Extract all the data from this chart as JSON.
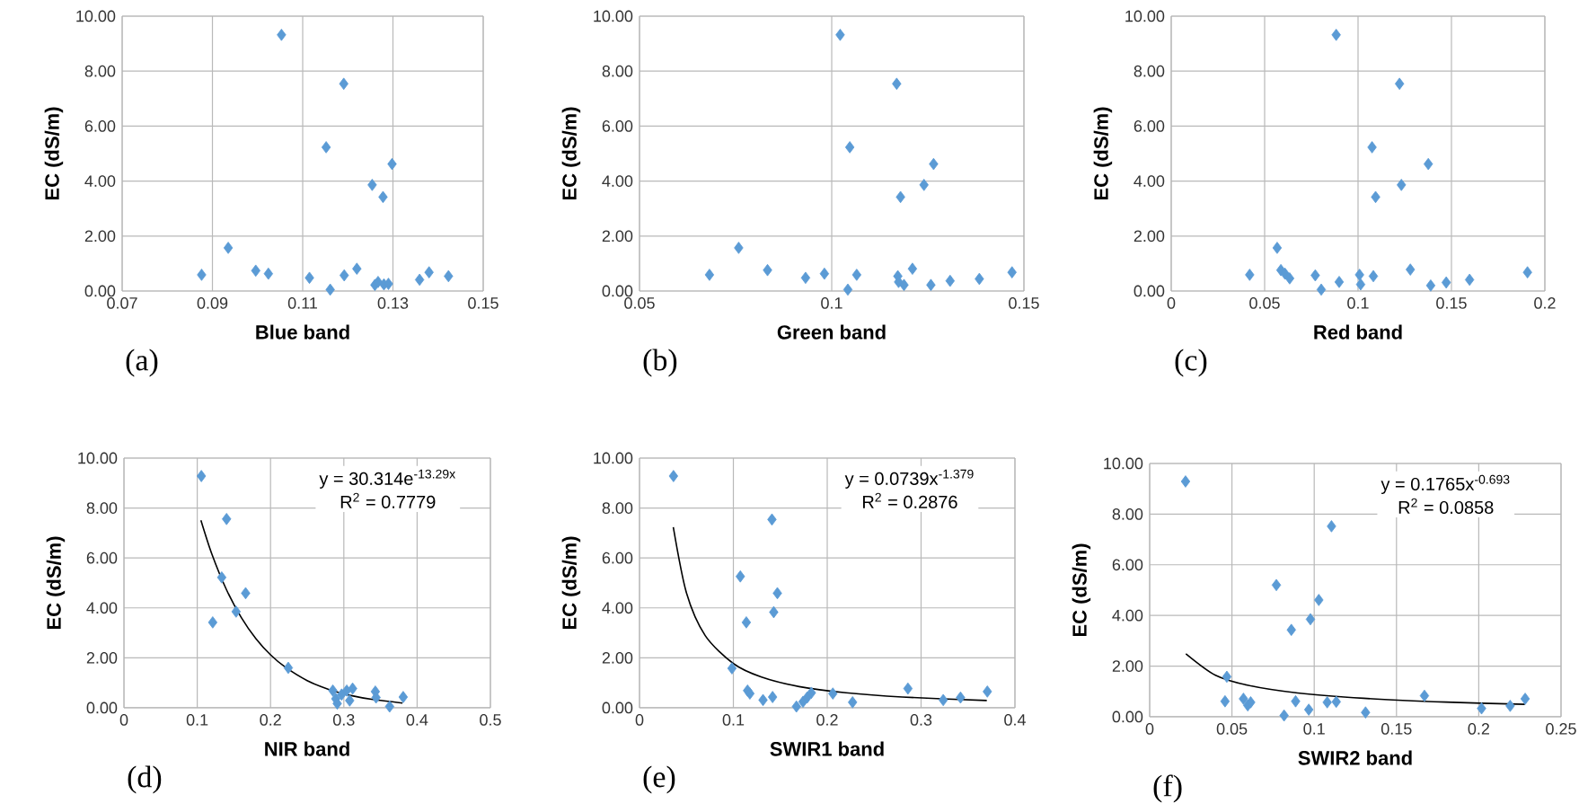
{
  "chart_data": [
    {
      "type": "scatter",
      "xlabel": "Blue band",
      "ylabel": "EC (dS/m)",
      "xlim": [
        0.07,
        0.15
      ],
      "xticks": [
        0.07,
        0.09,
        0.11,
        0.13,
        0.15
      ],
      "ylim": [
        0,
        10
      ],
      "yticks": [
        {
          "value": 0,
          "label": "0.00"
        },
        {
          "value": 2,
          "label": "2.00"
        },
        {
          "value": 4,
          "label": "4.00"
        },
        {
          "value": 6,
          "label": "6.00"
        },
        {
          "value": 8,
          "label": "8.00"
        },
        {
          "value": 10,
          "label": "10.00"
        }
      ],
      "grid": true,
      "marker": "diamond",
      "annotations": [
        "(a)"
      ],
      "series": [
        {
          "color": "#5b9bd5",
          "x": [
            0.0876,
            0.0935,
            0.0996,
            0.1024,
            0.1053,
            0.1115,
            0.1152,
            0.1161,
            0.1191,
            0.1192,
            0.122,
            0.1254,
            0.126,
            0.1267,
            0.1278,
            0.128,
            0.129,
            0.1298,
            0.1359,
            0.138,
            0.1423
          ],
          "values": [
            0.59,
            1.57,
            0.74,
            0.63,
            9.32,
            0.48,
            5.23,
            0.05,
            7.54,
            0.57,
            0.81,
            3.86,
            0.22,
            0.33,
            3.42,
            0.24,
            0.26,
            4.62,
            0.41,
            0.68,
            0.54
          ]
        }
      ]
    },
    {
      "type": "scatter",
      "xlabel": "Green band",
      "ylabel": "EC (dS/m)",
      "xlim": [
        0.05,
        0.15
      ],
      "xticks": [
        0.05,
        0.1,
        0.15
      ],
      "ylim": [
        0,
        10
      ],
      "yticks": [
        {
          "value": 0,
          "label": "0.00"
        },
        {
          "value": 2,
          "label": "2.00"
        },
        {
          "value": 4,
          "label": "4.00"
        },
        {
          "value": 6,
          "label": "6.00"
        },
        {
          "value": 8,
          "label": "8.00"
        },
        {
          "value": 10,
          "label": "10.00"
        }
      ],
      "grid": true,
      "marker": "diamond",
      "annotations": [
        "(b)"
      ],
      "series": [
        {
          "color": "#5b9bd5",
          "x": [
            0.0682,
            0.0758,
            0.0833,
            0.0932,
            0.0981,
            0.1022,
            0.1042,
            0.1047,
            0.1065,
            0.1169,
            0.1172,
            0.1174,
            0.1179,
            0.1184,
            0.1188,
            0.121,
            0.124,
            0.1258,
            0.1265,
            0.1308,
            0.1384,
            0.1469
          ],
          "values": [
            0.59,
            1.57,
            0.76,
            0.48,
            0.63,
            9.32,
            0.05,
            5.23,
            0.59,
            7.54,
            0.54,
            0.33,
            3.42,
            null,
            0.22,
            0.81,
            3.86,
            0.22,
            4.62,
            0.37,
            0.44,
            0.68
          ]
        }
      ]
    },
    {
      "type": "scatter",
      "xlabel": "Red band",
      "ylabel": "EC (dS/m)",
      "xlim": [
        0,
        0.2
      ],
      "xticks": [
        0,
        0.05,
        0.1,
        0.15,
        0.2
      ],
      "ylim": [
        0,
        10
      ],
      "yticks": [
        {
          "value": 0,
          "label": "0.00"
        },
        {
          "value": 2,
          "label": "2.00"
        },
        {
          "value": 4,
          "label": "4.00"
        },
        {
          "value": 6,
          "label": "6.00"
        },
        {
          "value": 8,
          "label": "8.00"
        },
        {
          "value": 10,
          "label": "10.00"
        }
      ],
      "grid": true,
      "marker": "diamond",
      "annotations": [
        "(c)"
      ],
      "series": [
        {
          "color": "#5b9bd5",
          "x": [
            0.042,
            0.0567,
            0.0587,
            0.0609,
            0.0634,
            0.0771,
            0.0803,
            0.0883,
            0.0899,
            0.1008,
            0.1014,
            0.1075,
            0.1082,
            0.1094,
            0.1222,
            0.1232,
            0.128,
            0.1376,
            0.1389,
            0.1472,
            0.1597,
            0.1907
          ],
          "values": [
            0.59,
            1.57,
            0.76,
            0.63,
            0.46,
            0.57,
            0.05,
            9.32,
            0.33,
            0.59,
            0.24,
            5.23,
            0.54,
            3.42,
            7.54,
            3.86,
            0.78,
            4.62,
            0.2,
            0.31,
            0.41,
            0.68
          ]
        }
      ]
    },
    {
      "type": "scatter",
      "xlabel": "NIR band",
      "ylabel": "EC (dS/m)",
      "xlim": [
        0,
        0.5
      ],
      "xticks": [
        0,
        0.1,
        0.2,
        0.3,
        0.4,
        0.5
      ],
      "ylim": [
        0,
        10
      ],
      "yticks": [
        {
          "value": 0,
          "label": "0.00"
        },
        {
          "value": 2,
          "label": "2.00"
        },
        {
          "value": 4,
          "label": "4.00"
        },
        {
          "value": 6,
          "label": "6.00"
        },
        {
          "value": 8,
          "label": "8.00"
        },
        {
          "value": 10,
          "label": "10.00"
        }
      ],
      "grid": true,
      "marker": "diamond",
      "annotations": [
        "(d)",
        "y = 30.314e$^{-13.29x}$",
        "R$^{2}$ = 0.7779"
      ],
      "series": [
        {
          "color": "#5b9bd5",
          "x": [
            0.1056,
            0.14,
            0.1334,
            0.166,
            0.1211,
            0.153,
            0.2242,
            0.285,
            0.289,
            0.297,
            0.304,
            0.312,
            0.308,
            0.343,
            0.344,
            0.3625,
            0.381,
            0.291
          ],
          "values": [
            9.28,
            7.56,
            5.22,
            4.59,
            3.42,
            3.85,
            1.6,
            0.69,
            0.36,
            0.53,
            0.69,
            0.77,
            0.29,
            0.65,
            0.41,
            0.05,
            0.43,
            0.17
          ]
        },
        {
          "type": "line",
          "marker": "none",
          "color": "#000000",
          "x": [
            0.105,
            0.12,
            0.14,
            0.16,
            0.18,
            0.2,
            0.22,
            0.25,
            0.28,
            0.31,
            0.34,
            0.38
          ],
          "values": [
            7.51,
            6.15,
            4.72,
            3.62,
            2.77,
            2.12,
            1.63,
            1.09,
            0.73,
            0.49,
            0.33,
            0.19
          ]
        }
      ]
    },
    {
      "type": "scatter",
      "xlabel": "SWIR1 band",
      "ylabel": "EC (dS/m)",
      "xlim": [
        0,
        0.4
      ],
      "xticks": [
        0,
        0.1,
        0.2,
        0.3,
        0.4
      ],
      "ylim": [
        0,
        10
      ],
      "yticks": [
        {
          "value": 0,
          "label": "0.00"
        },
        {
          "value": 2,
          "label": "2.00"
        },
        {
          "value": 4,
          "label": "4.00"
        },
        {
          "value": 6,
          "label": "6.00"
        },
        {
          "value": 8,
          "label": "8.00"
        },
        {
          "value": 10,
          "label": "10.00"
        }
      ],
      "grid": true,
      "marker": "diamond",
      "annotations": [
        "(e)",
        "y = 0.0739x$^{-1.379}$",
        "R$^{2}$ = 0.2876"
      ],
      "series": [
        {
          "color": "#5b9bd5",
          "x": [
            0.0362,
            0.1411,
            0.1074,
            0.1469,
            0.143,
            0.1138,
            0.0985,
            0.1151,
            0.1176,
            0.1316,
            0.1418,
            0.1672,
            0.1742,
            0.1786,
            0.1831,
            0.206,
            0.227,
            0.286,
            0.3236,
            0.342,
            0.3706
          ],
          "values": [
            9.28,
            7.54,
            5.26,
            4.59,
            3.83,
            3.42,
            1.58,
            0.69,
            0.57,
            0.31,
            0.43,
            0.05,
            0.24,
            0.41,
            0.6,
            0.57,
            0.22,
            0.77,
            0.31,
            0.41,
            0.65
          ]
        },
        {
          "type": "line",
          "marker": "none",
          "color": "#000000",
          "x": [
            0.036,
            0.05,
            0.07,
            0.1,
            0.13,
            0.17,
            0.22,
            0.28,
            0.37
          ],
          "values": [
            7.23,
            4.6,
            2.89,
            1.77,
            1.23,
            0.85,
            0.6,
            0.43,
            0.29
          ]
        }
      ]
    },
    {
      "type": "scatter",
      "xlabel": "SWIR2 band",
      "ylabel": "EC (dS/m)",
      "xlim": [
        0,
        0.25
      ],
      "xticks": [
        0,
        0.05,
        0.1,
        0.15,
        0.2,
        0.25
      ],
      "ylim": [
        0,
        10
      ],
      "yticks": [
        {
          "value": 0,
          "label": "0.00"
        },
        {
          "value": 2,
          "label": "2.00"
        },
        {
          "value": 4,
          "label": "4.00"
        },
        {
          "value": 6,
          "label": "6.00"
        },
        {
          "value": 8,
          "label": "8.00"
        },
        {
          "value": 10,
          "label": "10.00"
        }
      ],
      "grid": true,
      "marker": "diamond",
      "annotations": [
        "(f)",
        "y = 0.1765x$^{-0.693}$",
        "R$^{2}$ = 0.0858"
      ],
      "series": [
        {
          "color": "#5b9bd5",
          "x": [
            0.0218,
            0.1105,
            0.077,
            0.1028,
            0.0977,
            0.0861,
            0.0469,
            0.0458,
            0.057,
            0.0596,
            0.0614,
            0.0817,
            0.0887,
            0.0967,
            0.1079,
            0.1134,
            0.1312,
            0.167,
            0.2017,
            0.2191,
            0.2282
          ],
          "values": [
            9.29,
            7.52,
            5.2,
            4.61,
            3.85,
            3.43,
            1.58,
            0.61,
            0.71,
            0.45,
            0.57,
            0.05,
            0.61,
            0.28,
            0.57,
            0.59,
            0.17,
            0.83,
            0.33,
            0.43,
            0.71
          ]
        },
        {
          "type": "line",
          "marker": "none",
          "color": "#000000",
          "x": [
            0.022,
            0.04,
            0.06,
            0.09,
            0.13,
            0.18,
            0.228
          ],
          "values": [
            2.49,
            1.64,
            1.24,
            0.94,
            0.73,
            0.58,
            0.49
          ]
        }
      ]
    }
  ]
}
